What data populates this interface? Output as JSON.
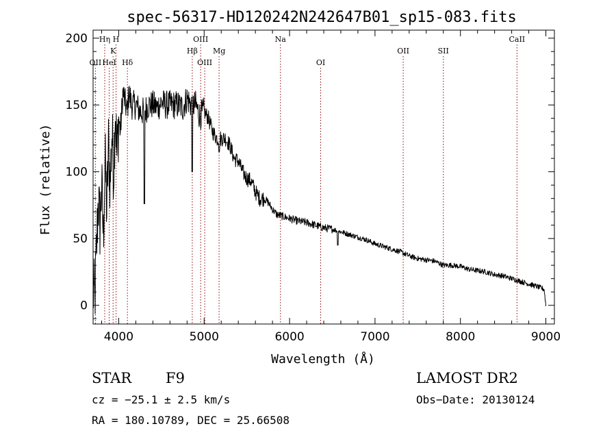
{
  "chart_data": {
    "type": "line",
    "title": "spec-56317-HD120242N242647B01_sp15-083.fits",
    "xlabel": "Wavelength (Å)",
    "ylabel": "Flux (relative)",
    "xlim": [
      3700,
      9100
    ],
    "ylim": [
      -14,
      206
    ],
    "x_ticks": [
      4000,
      5000,
      6000,
      7000,
      8000,
      9000
    ],
    "y_ticks": [
      0,
      50,
      100,
      150,
      200
    ],
    "grid": false,
    "spectrum_anchors": {
      "x": [
        3700,
        3720,
        3740,
        3760,
        3780,
        3800,
        3820,
        3840,
        3860,
        3880,
        3900,
        3920,
        3940,
        3960,
        3980,
        4000,
        4020,
        4050,
        4080,
        4100,
        4120,
        4150,
        4200,
        4250,
        4300,
        4350,
        4400,
        4450,
        4500,
        4550,
        4600,
        4650,
        4700,
        4750,
        4800,
        4850,
        4900,
        4950,
        5000,
        5050,
        5100,
        5150,
        5200,
        5250,
        5300,
        5350,
        5400,
        5450,
        5500,
        5550,
        5600,
        5650,
        5700,
        5750,
        5800,
        5850,
        5900,
        5950,
        6000,
        6100,
        6200,
        6300,
        6400,
        6500,
        6600,
        6700,
        6800,
        6900,
        7000,
        7100,
        7200,
        7300,
        7400,
        7500,
        7600,
        7700,
        7800,
        7900,
        8000,
        8100,
        8200,
        8300,
        8400,
        8500,
        8600,
        8700,
        8800,
        8900,
        8980,
        9000
      ],
      "y": [
        10,
        5,
        40,
        80,
        60,
        90,
        50,
        110,
        70,
        120,
        90,
        130,
        100,
        150,
        110,
        140,
        130,
        160,
        150,
        145,
        160,
        150,
        150,
        145,
        145,
        150,
        150,
        148,
        152,
        150,
        150,
        150,
        150,
        148,
        155,
        150,
        150,
        142,
        145,
        140,
        130,
        125,
        125,
        125,
        120,
        110,
        108,
        100,
        95,
        93,
        85,
        80,
        80,
        77,
        72,
        68,
        67,
        66,
        65,
        63,
        62,
        60,
        58,
        57,
        55,
        53,
        51,
        49,
        46,
        44,
        42,
        40,
        37,
        35,
        34,
        33,
        30,
        30,
        29,
        27,
        26,
        25,
        23,
        22,
        20,
        18,
        16,
        14,
        12,
        0
      ]
    },
    "absorption_features": [
      {
        "x": 4300,
        "y": 76
      },
      {
        "x": 4861,
        "y": 100
      },
      {
        "x": 5175,
        "y": 115
      },
      {
        "x": 6563,
        "y": 45
      }
    ],
    "lines": [
      {
        "label": "OII",
        "wave": 3727,
        "row": 3
      },
      {
        "label": "Hη",
        "wave": 3836,
        "row": 1
      },
      {
        "label": "HeI",
        "wave": 3889,
        "row": 3
      },
      {
        "label": "K",
        "wave": 3934,
        "row": 2
      },
      {
        "label": "H",
        "wave": 3969,
        "row": 1
      },
      {
        "label": "Hδ",
        "wave": 4102,
        "row": 3
      },
      {
        "label": "Hβ",
        "wave": 4861,
        "row": 2
      },
      {
        "label": "OIII",
        "wave": 4959,
        "row": 1
      },
      {
        "label": "OIII",
        "wave": 5007,
        "row": 3
      },
      {
        "label": "Mg",
        "wave": 5175,
        "row": 2
      },
      {
        "label": "Na",
        "wave": 5893,
        "row": 1
      },
      {
        "label": "OI",
        "wave": 6364,
        "row": 3
      },
      {
        "label": "OII",
        "wave": 7330,
        "row": 2
      },
      {
        "label": "SII",
        "wave": 7800,
        "row": 2
      },
      {
        "label": "CaII",
        "wave": 8662,
        "row": 1
      }
    ],
    "line_color": "#8b0000",
    "spectrum_color": "#000000"
  },
  "info": {
    "object_type": "STAR",
    "subclass": "F9",
    "survey": "LAMOST DR2",
    "redshift": "cz = −25.1 ± 2.5 km/s",
    "obs_date": "Obs−Date: 20130124",
    "coords": "RA = 180.10789, DEC =  25.66508"
  }
}
